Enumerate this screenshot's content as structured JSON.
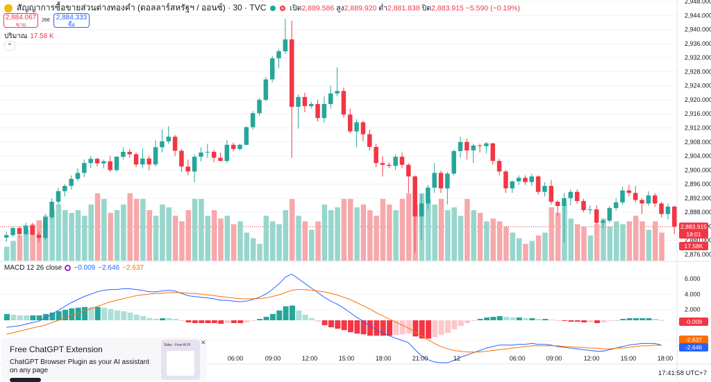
{
  "header": {
    "title": "สัญญาการซื้อขายส่วนต่างทองคำ (ดอลลาร์สหรัฐฯ / ออนซ์) · 30 · TVC",
    "open_label": "เปิด",
    "open": "2,889.586",
    "high_label": "สูง",
    "high": "2,889.920",
    "low_label": "ต่ำ",
    "low": "2,881.838",
    "close_label": "ปิด",
    "close": "2,883.915",
    "change": "−5.590 (−0.19%)",
    "sell_price": "2,884.067",
    "sell_label": "ขาย",
    "buy_price": "2,884.333",
    "buy_label": "ซื้อ",
    "spread": "266",
    "volume_label": "ปริมาณ",
    "volume_value": "17.58 K",
    "collapse_icon": "chevron-up-icon"
  },
  "macd_legend": {
    "label": "MACD 12 26 close",
    "v1": "−0.009",
    "v2": "−2.646",
    "v3": "−2.637"
  },
  "price_badges": {
    "last": "2,883.915",
    "countdown": "18:01",
    "volume": "17.58K",
    "macd_hist": "-0.009",
    "macd_signal": "-2.637",
    "macd_line": "-2.646"
  },
  "footer": {
    "timestamp": "17:41:58 UTC+7"
  },
  "ad": {
    "title": "Free ChatGPT Extension",
    "text": "ChatGPT Browser Plugin as your AI assistant on any page",
    "thumb_title": "Sider - Free AI Pl"
  },
  "colors": {
    "up": "#26a69a",
    "down": "#f23645",
    "vol_up": "#97d6cd",
    "vol_down": "#f6a8ab",
    "macd_line": "#2962ff",
    "signal_line": "#ff6d00"
  },
  "chart_data": {
    "type": "candlestick",
    "price_axis": {
      "min": 2876,
      "max": 2948,
      "ticks": [
        "2,948.000",
        "2,944.000",
        "2,940.000",
        "2,936.000",
        "2,932.000",
        "2,928.000",
        "2,924.000",
        "2,920.000",
        "2,916.000",
        "2,912.000",
        "2,908.000",
        "2,904.000",
        "2,900.000",
        "2,896.000",
        "2,892.000",
        "2,888.000",
        "2,884.000",
        "2,880.000",
        "2,876.000"
      ]
    },
    "macd_axis": {
      "min": -2,
      "max": 6,
      "ticks": [
        "6.000",
        "4.000",
        "2.000",
        "-2.000"
      ]
    },
    "time_labels": [
      "06:00",
      "09:00",
      "12:00",
      "15:00",
      "18:00",
      "21:00",
      "12",
      "06:00",
      "09:00",
      "12:00",
      "15:00",
      "18:00"
    ],
    "candles": [
      [
        2880.8,
        2882.5,
        2879.5,
        2881.5
      ],
      [
        2881.5,
        2884,
        2881,
        2883.5
      ],
      [
        2883.5,
        2884,
        2881,
        2881.8
      ],
      [
        2881.8,
        2885,
        2881.5,
        2884.2
      ],
      [
        2884.2,
        2885,
        2881.5,
        2881.6
      ],
      [
        2881.6,
        2882.5,
        2879.5,
        2880.7
      ],
      [
        2880.7,
        2887.5,
        2880,
        2886.6
      ],
      [
        2886.6,
        2892,
        2886,
        2891
      ],
      [
        2891,
        2895,
        2890,
        2894
      ],
      [
        2894,
        2896,
        2892.5,
        2895.5
      ],
      [
        2895.5,
        2898.5,
        2894.5,
        2897.5
      ],
      [
        2897.5,
        2900.5,
        2896.8,
        2899.2
      ],
      [
        2899.2,
        2903,
        2898,
        2902
      ],
      [
        2902,
        2904,
        2900.5,
        2903.2
      ],
      [
        2903.2,
        2903.5,
        2901,
        2901.9
      ],
      [
        2901.9,
        2903,
        2900.5,
        2902.5
      ],
      [
        2902.5,
        2904,
        2899.5,
        2900
      ],
      [
        2900,
        2904,
        2899.5,
        2903.8
      ],
      [
        2903.8,
        2906.5,
        2903,
        2905.2
      ],
      [
        2905.2,
        2906,
        2903.5,
        2904.5
      ],
      [
        2904.5,
        2905,
        2900.8,
        2901.6
      ],
      [
        2901.6,
        2906.2,
        2900.5,
        2903.3
      ],
      [
        2903.3,
        2904,
        2900,
        2901.6
      ],
      [
        2901.6,
        2908.5,
        2901,
        2906.5
      ],
      [
        2906.5,
        2911.5,
        2905,
        2908.2
      ],
      [
        2908.2,
        2912.5,
        2907.5,
        2909.5
      ],
      [
        2909.5,
        2910,
        2904,
        2905.5
      ],
      [
        2905.5,
        2906,
        2899.5,
        2901
      ],
      [
        2901,
        2903,
        2898.5,
        2899.6
      ],
      [
        2899.6,
        2904.5,
        2896.5,
        2903.8
      ],
      [
        2903.8,
        2906.5,
        2902.5,
        2905
      ],
      [
        2905,
        2907.5,
        2903.5,
        2905.2
      ],
      [
        2905.2,
        2905.8,
        2902.2,
        2903.5
      ],
      [
        2903.5,
        2905,
        2902.5,
        2902.6
      ],
      [
        2902.6,
        2908.5,
        2902,
        2907.2
      ],
      [
        2907.2,
        2907.8,
        2905.3,
        2906
      ],
      [
        2906,
        2907.5,
        2905.5,
        2907.2
      ],
      [
        2907.2,
        2912.5,
        2907,
        2912.2
      ],
      [
        2912.2,
        2916.8,
        2911.5,
        2916.2
      ],
      [
        2916.2,
        2920.5,
        2915.5,
        2920
      ],
      [
        2920,
        2926.5,
        2919.5,
        2925.8
      ],
      [
        2925.8,
        2932.5,
        2925,
        2931.8
      ],
      [
        2931.8,
        2934.5,
        2929,
        2933.8
      ],
      [
        2933.8,
        2943,
        2933,
        2937.2
      ],
      [
        2937.2,
        2942.5,
        2903.5,
        2918
      ],
      [
        2918,
        2921.5,
        2911.8,
        2920.8
      ],
      [
        2920.8,
        2922,
        2916.5,
        2918.2
      ],
      [
        2918.2,
        2919.5,
        2917.5,
        2918.8
      ],
      [
        2918.8,
        2920,
        2913.8,
        2914.8
      ],
      [
        2914.8,
        2921,
        2913.5,
        2918.8
      ],
      [
        2918.8,
        2924,
        2917.5,
        2921.8
      ],
      [
        2921.8,
        2929.2,
        2921,
        2922.5
      ],
      [
        2922.5,
        2923.5,
        2915,
        2915.8
      ],
      [
        2915.8,
        2917.5,
        2910.5,
        2911
      ],
      [
        2911,
        2914.5,
        2906.5,
        2913.6
      ],
      [
        2913.6,
        2914,
        2908.2,
        2910.2
      ],
      [
        2910.2,
        2911.5,
        2905.5,
        2906.6
      ],
      [
        2906.6,
        2907.5,
        2900.8,
        2902
      ],
      [
        2902,
        2904,
        2898.2,
        2901.5
      ],
      [
        2901.5,
        2902.2,
        2900.5,
        2901.2
      ],
      [
        2901.2,
        2904.5,
        2900,
        2903.8
      ],
      [
        2903.8,
        2905,
        2900.5,
        2901.5
      ],
      [
        2901.5,
        2902,
        2893.5,
        2898.2
      ],
      [
        2898.2,
        2898.5,
        2876.5,
        2886.8
      ],
      [
        2886.8,
        2893.2,
        2880,
        2890.5
      ],
      [
        2890.5,
        2895.8,
        2889,
        2895
      ],
      [
        2895,
        2902,
        2893.5,
        2899.2
      ],
      [
        2899.2,
        2899.8,
        2893.5,
        2894.8
      ],
      [
        2894.8,
        2899.5,
        2890.2,
        2899
      ],
      [
        2899,
        2905.8,
        2898.5,
        2905.4
      ],
      [
        2905.4,
        2909.5,
        2903.5,
        2908
      ],
      [
        2908,
        2909,
        2903,
        2905.6
      ],
      [
        2905.6,
        2907.5,
        2902,
        2907
      ],
      [
        2907,
        2907.5,
        2905,
        2906.8
      ],
      [
        2906.8,
        2908,
        2904.8,
        2907.6
      ],
      [
        2907.6,
        2907.8,
        2901.5,
        2902.6
      ],
      [
        2902.6,
        2903.2,
        2898.5,
        2899.6
      ],
      [
        2899.6,
        2900,
        2893.5,
        2894.8
      ],
      [
        2894.8,
        2897,
        2893.5,
        2896.8
      ],
      [
        2896.8,
        2898.5,
        2895.8,
        2897.8
      ],
      [
        2897.8,
        2898.5,
        2895.8,
        2896.6
      ],
      [
        2896.6,
        2899,
        2895.5,
        2898.2
      ],
      [
        2898.2,
        2898.5,
        2893,
        2893.8
      ],
      [
        2893.8,
        2896.5,
        2892.5,
        2895.5
      ],
      [
        2895.5,
        2897.2,
        2890.2,
        2891
      ],
      [
        2891,
        2891.5,
        2887,
        2889.8
      ],
      [
        2889.8,
        2893.5,
        2879.5,
        2892
      ],
      [
        2892,
        2894.5,
        2890,
        2893.8
      ],
      [
        2893.8,
        2894.5,
        2890.5,
        2891.2
      ],
      [
        2891.2,
        2891.8,
        2888,
        2888.6
      ],
      [
        2888.6,
        2890,
        2887.5,
        2888.8
      ],
      [
        2888.8,
        2890,
        2884.5,
        2885
      ],
      [
        2885,
        2886.2,
        2883.5,
        2885.6
      ],
      [
        2885.6,
        2889.8,
        2885,
        2889.2
      ],
      [
        2889.2,
        2892,
        2888.5,
        2890.8
      ],
      [
        2890.8,
        2895.2,
        2890.2,
        2894.2
      ],
      [
        2894.2,
        2895.8,
        2892.5,
        2893.5
      ],
      [
        2893.5,
        2895.5,
        2890.8,
        2891.5
      ],
      [
        2891.5,
        2892,
        2887.5,
        2890.5
      ],
      [
        2890.5,
        2894,
        2889.8,
        2892.8
      ],
      [
        2892.8,
        2893.5,
        2889.5,
        2890.5
      ],
      [
        2890.5,
        2891,
        2886.5,
        2887.5
      ],
      [
        2887.5,
        2890.5,
        2886,
        2889.6
      ],
      [
        2889.6,
        2889.9,
        2881.8,
        2883.9
      ]
    ],
    "volume": [
      2.5,
      3.5,
      4.5,
      5.5,
      6.5,
      7.2,
      8,
      9,
      10,
      9,
      8.5,
      9,
      8,
      10,
      12,
      11,
      8.5,
      9,
      10,
      12,
      11,
      11,
      9,
      8,
      10,
      9.5,
      8,
      7,
      9,
      11,
      11,
      8,
      9,
      7.5,
      8,
      6.5,
      7,
      5,
      4,
      3,
      8,
      7,
      6.5,
      9,
      11,
      8,
      7,
      5.5,
      7,
      10,
      9,
      9.5,
      11,
      11,
      9.5,
      10,
      9,
      8,
      11,
      10,
      9,
      11,
      12,
      10,
      12,
      11,
      10,
      11,
      9,
      9.5,
      8,
      11,
      9,
      8.5,
      7,
      7.5,
      7,
      6,
      5,
      4,
      3,
      3.5,
      4.5,
      5,
      9.5,
      8.5,
      10,
      7.5,
      6.5,
      6,
      4.5,
      6.5,
      7.5,
      6,
      7,
      6.5,
      7,
      8,
      7,
      5.5,
      7,
      5
    ],
    "macd_line": [
      -0.3,
      -0.2,
      -0.1,
      0.1,
      0.3,
      0.5,
      0.9,
      1.4,
      1.9,
      2.4,
      2.9,
      3.3,
      3.7,
      4,
      4.3,
      4.5,
      4.6,
      4.6,
      4.7,
      4.7,
      4.6,
      4.5,
      4.3,
      4.3,
      4.4,
      4.5,
      4.4,
      4.1,
      3.8,
      3.7,
      3.6,
      3.5,
      3.4,
      3.2,
      3.2,
      3.1,
      3,
      3.1,
      3.3,
      3.6,
      4,
      4.6,
      5.3,
      6.2,
      6.6,
      6,
      5.4,
      4.8,
      4.2,
      3.6,
      3.1,
      2.7,
      2.2,
      1.6,
      1,
      0.5,
      -0.1,
      -0.6,
      -1,
      -1.4,
      -1.7,
      -2,
      -2.3,
      -3.2,
      -4,
      -4.5,
      -4.8,
      -4.9,
      -4.9,
      -4.6,
      -4.2,
      -3.9,
      -3.6,
      -3.3,
      -3,
      -2.8,
      -2.6,
      -2.6,
      -2.6,
      -2.5,
      -2.5,
      -2.4,
      -2.5,
      -2.5,
      -2.6,
      -2.8,
      -2.9,
      -3,
      -3.1,
      -3.2,
      -3.3,
      -3.4,
      -3.4,
      -3.2,
      -3,
      -2.8,
      -2.6,
      -2.5,
      -2.4,
      -2.4,
      -2.4,
      -2.6
    ],
    "signal_line": [
      -1.2,
      -1,
      -0.8,
      -0.6,
      -0.4,
      -0.2,
      0,
      0.3,
      0.6,
      0.9,
      1.2,
      1.5,
      1.8,
      2.1,
      2.4,
      2.7,
      3,
      3.2,
      3.4,
      3.6,
      3.8,
      3.9,
      4,
      4.1,
      4.1,
      4.2,
      4.2,
      4.2,
      4.1,
      4.1,
      4,
      3.9,
      3.8,
      3.7,
      3.6,
      3.5,
      3.4,
      3.4,
      3.4,
      3.4,
      3.5,
      3.7,
      3.9,
      4.2,
      4.5,
      4.6,
      4.6,
      4.5,
      4.4,
      4.3,
      4.1,
      3.9,
      3.6,
      3.3,
      2.9,
      2.5,
      2.1,
      1.6,
      1.2,
      0.8,
      0.4,
      0,
      -0.4,
      -0.9,
      -1.4,
      -1.9,
      -2.4,
      -2.8,
      -3.1,
      -3.3,
      -3.4,
      -3.5,
      -3.5,
      -3.5,
      -3.4,
      -3.3,
      -3.2,
      -3.1,
      -3,
      -2.9,
      -2.8,
      -2.7,
      -2.7,
      -2.7,
      -2.7,
      -2.7,
      -2.8,
      -2.8,
      -2.9,
      -2.9,
      -3,
      -3,
      -3.1,
      -3.1,
      -3,
      -3,
      -2.9,
      -2.8,
      -2.7,
      -2.7,
      -2.6,
      -2.64
    ]
  }
}
